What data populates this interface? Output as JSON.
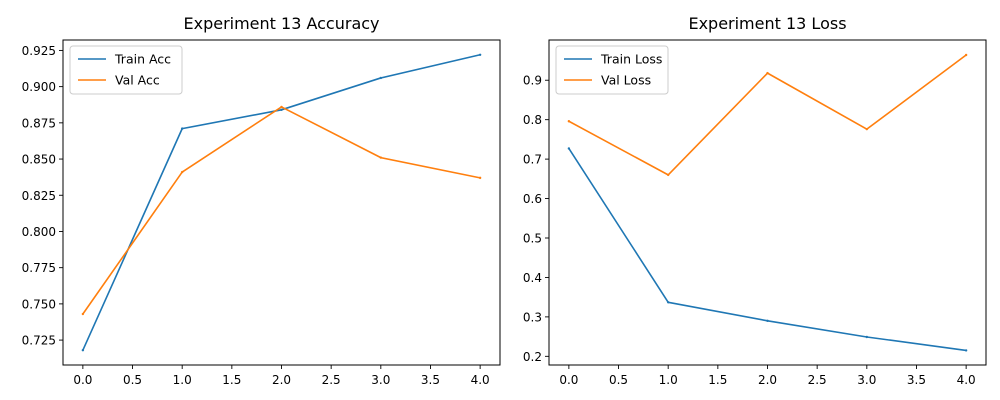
{
  "chart_data": [
    {
      "type": "line",
      "title": "Experiment 13 Accuracy",
      "xlabel": "",
      "ylabel": "",
      "x": [
        0,
        1,
        2,
        3,
        4
      ],
      "x_ticks": [
        "0.0",
        "0.5",
        "1.0",
        "1.5",
        "2.0",
        "2.5",
        "3.0",
        "3.5",
        "4.0"
      ],
      "y_ticks": [
        "0.725",
        "0.750",
        "0.775",
        "0.800",
        "0.825",
        "0.850",
        "0.875",
        "0.900",
        "0.925"
      ],
      "xlim": [
        -0.2,
        4.2
      ],
      "ylim": [
        0.7078,
        0.9322
      ],
      "grid": false,
      "legend_position": "upper-left",
      "series": [
        {
          "name": "Train Acc",
          "color": "#1f77b4",
          "values": [
            0.718,
            0.871,
            0.884,
            0.906,
            0.922
          ]
        },
        {
          "name": "Val Acc",
          "color": "#ff7f0e",
          "values": [
            0.743,
            0.841,
            0.886,
            0.851,
            0.837
          ]
        }
      ]
    },
    {
      "type": "line",
      "title": "Experiment 13 Loss",
      "xlabel": "",
      "ylabel": "",
      "x": [
        0,
        1,
        2,
        3,
        4
      ],
      "x_ticks": [
        "0.0",
        "0.5",
        "1.0",
        "1.5",
        "2.0",
        "2.5",
        "3.0",
        "3.5",
        "4.0"
      ],
      "y_ticks": [
        "0.2",
        "0.3",
        "0.4",
        "0.5",
        "0.6",
        "0.7",
        "0.8",
        "0.9"
      ],
      "xlim": [
        -0.2,
        4.2
      ],
      "ylim": [
        0.178,
        1.002
      ],
      "grid": false,
      "legend_position": "upper-left",
      "series": [
        {
          "name": "Train Loss",
          "color": "#1f77b4",
          "values": [
            0.727,
            0.337,
            0.29,
            0.249,
            0.215
          ]
        },
        {
          "name": "Val Loss",
          "color": "#ff7f0e",
          "values": [
            0.796,
            0.66,
            0.918,
            0.776,
            0.964
          ]
        }
      ]
    }
  ]
}
